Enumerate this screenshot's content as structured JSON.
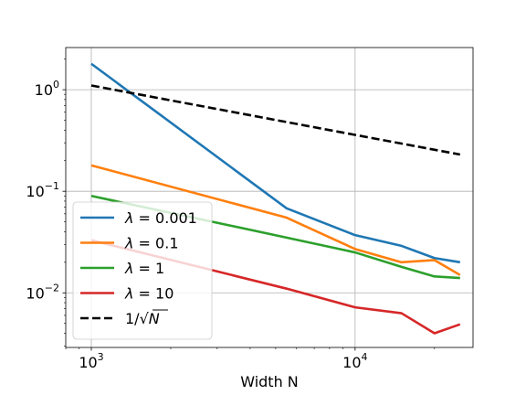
{
  "chart_data": {
    "type": "line",
    "xscale": "log",
    "yscale": "log",
    "xlim": [
      800,
      28000
    ],
    "ylim": [
      0.0029,
      2.6
    ],
    "grid": true,
    "legend_position": "lower-left",
    "xlabel": "Width N",
    "ylabel": "",
    "x_ticks": [
      {
        "value": 1000,
        "base": "10",
        "exp": "3"
      },
      {
        "value": 10000,
        "base": "10",
        "exp": "4"
      }
    ],
    "y_ticks": [
      {
        "value": 1,
        "base": "10",
        "exp": "0"
      },
      {
        "value": 0.1,
        "base": "10",
        "exp": "−1"
      },
      {
        "value": 0.01,
        "base": "10",
        "exp": "−2"
      }
    ],
    "series": [
      {
        "name": "λ = 0.001",
        "legend_symbol": "λ",
        "legend_value": " = 0.001",
        "color": "#1f77b4",
        "dash": "solid",
        "x": [
          1000,
          5500,
          10000,
          15000,
          20000,
          25000
        ],
        "y": [
          1.8,
          0.068,
          0.037,
          0.029,
          0.022,
          0.02
        ]
      },
      {
        "name": "λ = 0.1",
        "legend_symbol": "λ",
        "legend_value": " = 0.1",
        "color": "#ff7f0e",
        "dash": "solid",
        "x": [
          1000,
          5500,
          10000,
          15000,
          20000,
          25000
        ],
        "y": [
          0.18,
          0.055,
          0.027,
          0.02,
          0.021,
          0.015
        ]
      },
      {
        "name": "λ = 1",
        "legend_symbol": "λ",
        "legend_value": " = 1",
        "color": "#2ca02c",
        "dash": "solid",
        "x": [
          1000,
          5500,
          10000,
          15000,
          20000,
          25000
        ],
        "y": [
          0.09,
          0.035,
          0.025,
          0.018,
          0.0145,
          0.014
        ]
      },
      {
        "name": "λ = 10",
        "legend_symbol": "λ",
        "legend_value": " = 10",
        "color": "#d62728",
        "dash": "solid",
        "x": [
          1000,
          5500,
          10000,
          15000,
          20000,
          25000
        ],
        "y": [
          0.033,
          0.011,
          0.0072,
          0.0063,
          0.004,
          0.0049
        ]
      },
      {
        "name": "1/√N",
        "legend_symbol": "1/√",
        "legend_value": "N",
        "color": "#000000",
        "dash": "dashed",
        "x": [
          1000,
          25000
        ],
        "y": [
          1.1,
          0.23
        ]
      }
    ]
  }
}
